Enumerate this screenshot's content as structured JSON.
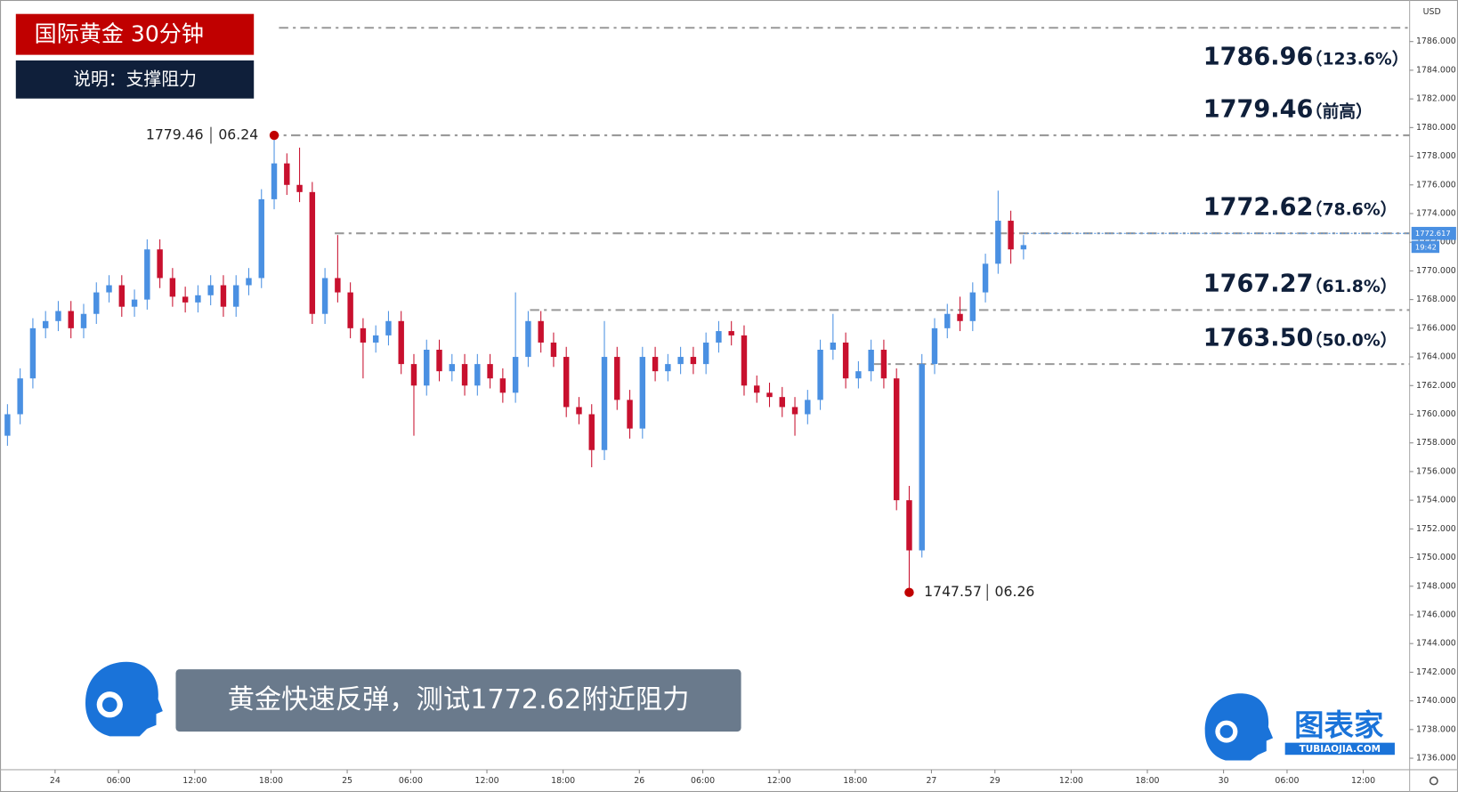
{
  "chart_data": {
    "type": "candlestick",
    "title": "国际黄金  30分钟",
    "subtitle": "说明：支撑阻力",
    "currency": "USD",
    "x": [
      0,
      2,
      4,
      6,
      8,
      10,
      12,
      14,
      16,
      18,
      20,
      22,
      24,
      26,
      28,
      30,
      32,
      34,
      36,
      38,
      40,
      42,
      44,
      46,
      48,
      50,
      52,
      54,
      56,
      58,
      60,
      62,
      64,
      66,
      68,
      70,
      72,
      74,
      76,
      78,
      80,
      82,
      84,
      86,
      88,
      90,
      92,
      94,
      96,
      98,
      100,
      102,
      104,
      106,
      108,
      110,
      112,
      114,
      116,
      118,
      120,
      122,
      124,
      126,
      128,
      130,
      132,
      134,
      136,
      138,
      140,
      142,
      144,
      146,
      148,
      150,
      152,
      154,
      156,
      158,
      160
    ],
    "open": [
      1758.5,
      1760,
      1762.5,
      1766,
      1766.5,
      1767.2,
      1766,
      1767,
      1768.5,
      1769,
      1767.5,
      1768,
      1771.5,
      1769.5,
      1768.2,
      1767.8,
      1768.3,
      1769,
      1767.5,
      1769,
      1769.5,
      1775,
      1777.5,
      1776,
      1775.5,
      1767,
      1769.5,
      1768.5,
      1766,
      1765,
      1765.5,
      1766.5,
      1763.5,
      1762,
      1764.5,
      1763,
      1763.5,
      1762,
      1763.5,
      1762.5,
      1761.5,
      1764,
      1766.5,
      1765,
      1764,
      1760.5,
      1760,
      1757.5,
      1764,
      1761,
      1759,
      1764,
      1763,
      1763.5,
      1764,
      1763.5,
      1765,
      1765.8,
      1765.5,
      1762,
      1761.5,
      1761.2,
      1760.5,
      1760,
      1761,
      1764.5,
      1765,
      1762.5,
      1763,
      1764.5,
      1762.5,
      1754,
      1750.5,
      1763.5,
      1766,
      1767,
      1766.5,
      1768.5,
      1770.5,
      1773.5,
      1771.5
    ],
    "high": [
      1760.7,
      1763.2,
      1766.7,
      1767.2,
      1767.9,
      1767.9,
      1767.7,
      1769.2,
      1769.7,
      1769.7,
      1768.7,
      1772.2,
      1772.2,
      1770.2,
      1768.9,
      1769,
      1769.7,
      1769.7,
      1769.7,
      1770.2,
      1775.7,
      1779.46,
      1778.2,
      1778.6,
      1776.2,
      1770.2,
      1772.5,
      1769.2,
      1766.7,
      1766.2,
      1767.2,
      1767.2,
      1764.2,
      1765.2,
      1765.2,
      1764.2,
      1764.2,
      1764.2,
      1764.2,
      1763.2,
      1768.5,
      1767.2,
      1767.2,
      1765.7,
      1764.7,
      1761.2,
      1760.7,
      1766.5,
      1764.7,
      1761.7,
      1764.7,
      1764.7,
      1764.2,
      1764.7,
      1764.7,
      1765.7,
      1766.5,
      1766.5,
      1766.2,
      1762.7,
      1762.2,
      1761.9,
      1761.2,
      1761.7,
      1765.2,
      1767,
      1765.7,
      1763.7,
      1765.2,
      1765.2,
      1763.2,
      1755,
      1764.2,
      1766.7,
      1767.7,
      1768.2,
      1769.2,
      1771.2,
      1775.6,
      1774.2,
      1772.5
    ],
    "low": [
      1757.8,
      1759.3,
      1761.8,
      1765.3,
      1765.8,
      1765.3,
      1765.3,
      1766.3,
      1767.8,
      1766.8,
      1766.8,
      1767.3,
      1768.8,
      1767.5,
      1767.1,
      1767.1,
      1767.6,
      1766.8,
      1766.8,
      1768.3,
      1768.8,
      1774.3,
      1775.3,
      1774.8,
      1766.3,
      1766.3,
      1767.8,
      1765.3,
      1762.5,
      1764.3,
      1764.8,
      1762.8,
      1758.5,
      1761.3,
      1762.3,
      1762.3,
      1761.3,
      1761.3,
      1761.8,
      1760.8,
      1760.8,
      1763.3,
      1764.3,
      1763.3,
      1759.8,
      1759.3,
      1756.3,
      1756.8,
      1760.3,
      1758.3,
      1758.3,
      1762.3,
      1762.3,
      1762.8,
      1762.8,
      1762.8,
      1764.3,
      1764.8,
      1761.3,
      1760.8,
      1760.5,
      1759.8,
      1758.5,
      1759.3,
      1760.3,
      1763.8,
      1761.8,
      1761.8,
      1762.3,
      1761.8,
      1753.3,
      1747.57,
      1750,
      1762.8,
      1765.3,
      1765.8,
      1765.8,
      1767.8,
      1769.8,
      1770.5,
      1770.8
    ],
    "close": [
      1760,
      1762.5,
      1766,
      1766.5,
      1767.2,
      1766,
      1767,
      1768.5,
      1769,
      1767.5,
      1768,
      1771.5,
      1769.5,
      1768.2,
      1767.8,
      1768.3,
      1769,
      1767.5,
      1769,
      1769.5,
      1775,
      1777.5,
      1776,
      1775.5,
      1767,
      1769.5,
      1768.5,
      1766,
      1765,
      1765.5,
      1766.5,
      1763.5,
      1762,
      1764.5,
      1763,
      1763.5,
      1762,
      1763.5,
      1762.5,
      1761.5,
      1764,
      1766.5,
      1765,
      1764,
      1760.5,
      1760,
      1757.5,
      1764,
      1761,
      1759,
      1764,
      1763,
      1763.5,
      1764,
      1763.5,
      1765,
      1765.8,
      1765.5,
      1762,
      1761.5,
      1761.2,
      1760.5,
      1760,
      1761,
      1764.5,
      1765,
      1762.5,
      1763,
      1764.5,
      1762.5,
      1754,
      1750.5,
      1763.5,
      1766,
      1767,
      1766.5,
      1768.5,
      1770.5,
      1773.5,
      1771.5,
      1771.8
    ],
    "up_color": "#4a90e2",
    "down_color": "#c8102e",
    "xlim": [
      -1.17,
      220.8
    ],
    "xticks": [
      {
        "value": 7.5,
        "label": "24"
      },
      {
        "value": 17.5,
        "label": "06:00"
      },
      {
        "value": 29.5,
        "label": "12:00"
      },
      {
        "value": 41.5,
        "label": "18:00"
      },
      {
        "value": 53.5,
        "label": "25"
      },
      {
        "value": 63.5,
        "label": "06:00"
      },
      {
        "value": 75.5,
        "label": "12:00"
      },
      {
        "value": 87.5,
        "label": "18:00"
      },
      {
        "value": 99.5,
        "label": "26"
      },
      {
        "value": 109.5,
        "label": "06:00"
      },
      {
        "value": 121.5,
        "label": "12:00"
      },
      {
        "value": 133.5,
        "label": "18:00"
      },
      {
        "value": 145.5,
        "label": "27"
      },
      {
        "value": 155.5,
        "label": "29"
      },
      {
        "value": 167.5,
        "label": "12:00"
      },
      {
        "value": 179.5,
        "label": "18:00"
      },
      {
        "value": 191.5,
        "label": "30"
      },
      {
        "value": 201.5,
        "label": "06:00"
      },
      {
        "value": 213.5,
        "label": "12:00"
      }
    ],
    "ylim": [
      1735.2,
      1788.9
    ],
    "yticks": [
      {
        "value": 1736,
        "label": "1736.000"
      },
      {
        "value": 1738,
        "label": "1738.000"
      },
      {
        "value": 1740,
        "label": "1740.000"
      },
      {
        "value": 1742,
        "label": "1742.000"
      },
      {
        "value": 1744,
        "label": "1744.000"
      },
      {
        "value": 1746,
        "label": "1746.000"
      },
      {
        "value": 1748,
        "label": "1748.000"
      },
      {
        "value": 1750,
        "label": "1750.000"
      },
      {
        "value": 1752,
        "label": "1752.000"
      },
      {
        "value": 1754,
        "label": "1754.000"
      },
      {
        "value": 1756,
        "label": "1756.000"
      },
      {
        "value": 1758,
        "label": "1758.000"
      },
      {
        "value": 1760,
        "label": "1760.000"
      },
      {
        "value": 1762,
        "label": "1762.000"
      },
      {
        "value": 1764,
        "label": "1764.000"
      },
      {
        "value": 1766,
        "label": "1766.000"
      },
      {
        "value": 1768,
        "label": "1768.000"
      },
      {
        "value": 1770,
        "label": "1770.000"
      },
      {
        "value": 1772,
        "label": "1772.000"
      },
      {
        "value": 1774,
        "label": "1774.000"
      },
      {
        "value": 1776,
        "label": "1776.000"
      },
      {
        "value": 1778,
        "label": "1778.000"
      },
      {
        "value": 1780,
        "label": "1780.000"
      },
      {
        "value": 1782,
        "label": "1782.000"
      },
      {
        "value": 1784,
        "label": "1784.000"
      },
      {
        "value": 1786,
        "label": "1786.000"
      }
    ],
    "levels": [
      {
        "value": 1786.96,
        "label": "1786.96",
        "note": "（123.6%）"
      },
      {
        "value": 1779.46,
        "label": "1779.46",
        "note": "（前高）"
      },
      {
        "value": 1772.62,
        "label": "1772.62",
        "note": "（78.6%）"
      },
      {
        "value": 1767.27,
        "label": "1767.27",
        "note": "（61.8%）"
      },
      {
        "value": 1763.5,
        "label": "1763.50",
        "note": "（50.0%）"
      }
    ],
    "annotations": [
      {
        "value": 1779.46,
        "x": 42,
        "date": "06.24"
      },
      {
        "value": 1747.57,
        "x": 142,
        "date": "06.26"
      }
    ],
    "last_price": {
      "value": 1772.617,
      "label": "1772.617",
      "time": "19:42"
    }
  },
  "caption": "黄金快速反弹，测试1772.62附近阻力",
  "logo": {
    "name": "图表家",
    "url": "TUBIAOJIA.COM"
  }
}
